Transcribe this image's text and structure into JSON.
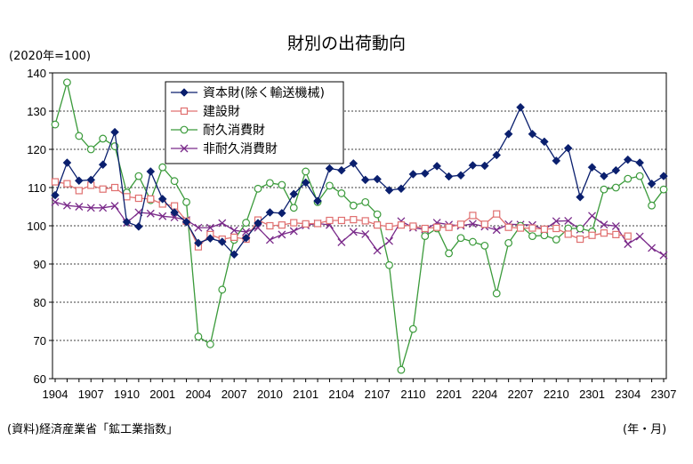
{
  "title": "財別の出荷動向",
  "unit_label": "(2020年=100)",
  "source": "(資料)経済産業省「鉱工業指数」",
  "x_unit": "(年・月)",
  "chart_data": {
    "type": "line",
    "title": "財別の出荷動向",
    "xlabel": "(年・月)",
    "ylabel": "(2020年=100)",
    "ylim": [
      60,
      140
    ],
    "yticks": [
      60,
      70,
      80,
      90,
      100,
      110,
      120,
      130,
      140
    ],
    "grid": true,
    "legend_position": "top-left",
    "x_tick_labels": [
      "1904",
      "1907",
      "1910",
      "2001",
      "2004",
      "2007",
      "2010",
      "2101",
      "2104",
      "2107",
      "2110",
      "2201",
      "2204",
      "2207",
      "2210",
      "2301",
      "2304",
      "2307"
    ],
    "x_start": "2019-04",
    "x_end": "2023-09",
    "series": [
      {
        "name": "資本財(除く輸送機械)",
        "color": "#0a1f6e",
        "marker": "diamond",
        "values": [
          108.0,
          116.5,
          111.8,
          112.0,
          116.0,
          124.5,
          101.0,
          99.8,
          114.2,
          107.0,
          103.5,
          101.0,
          95.5,
          96.7,
          95.8,
          92.5,
          96.8,
          100.7,
          103.5,
          103.3,
          108.3,
          111.3,
          106.5,
          115.0,
          114.5,
          116.3,
          112.0,
          112.2,
          109.3,
          109.7,
          113.5,
          113.7,
          115.6,
          112.9,
          113.2,
          115.8,
          115.7,
          118.5,
          124.0,
          131.0,
          124.0,
          122.0,
          117.0,
          120.3,
          107.5,
          115.3,
          113.0,
          114.5,
          117.3,
          116.5,
          111.0,
          113.0
        ]
      },
      {
        "name": "建設財",
        "color": "#e07070",
        "marker": "square",
        "values": [
          111.5,
          111.0,
          109.2,
          110.6,
          109.6,
          110.0,
          107.6,
          107.2,
          107.0,
          105.7,
          105.2,
          101.2,
          94.5,
          97.7,
          96.5,
          97.0,
          96.5,
          101.5,
          100.0,
          100.2,
          100.8,
          100.5,
          100.6,
          101.4,
          101.4,
          101.6,
          101.3,
          100.2,
          99.8,
          100.2,
          99.9,
          99.3,
          99.6,
          99.6,
          100.4,
          102.7,
          100.4,
          103.1,
          99.6,
          99.4,
          99.4,
          99.1,
          99.3,
          97.8,
          96.5,
          97.5,
          98.1,
          97.7,
          97.3,
          null,
          null,
          null
        ]
      },
      {
        "name": "耐久消費財",
        "color": "#3a9a3a",
        "marker": "circle",
        "values": [
          126.5,
          137.5,
          123.5,
          120.0,
          122.8,
          120.8,
          108.7,
          113.0,
          106.7,
          115.3,
          111.7,
          106.2,
          71.0,
          69.0,
          83.3,
          96.3,
          100.8,
          109.7,
          111.2,
          110.7,
          104.7,
          114.2,
          106.2,
          110.5,
          108.5,
          105.3,
          106.2,
          103.0,
          89.7,
          62.3,
          73.0,
          97.3,
          99.3,
          92.8,
          96.8,
          95.8,
          94.8,
          82.3,
          95.5,
          100.0,
          97.3,
          97.5,
          96.4,
          99.3,
          99.3,
          98.5,
          109.5,
          110.0,
          112.3,
          113.0,
          105.3,
          109.5
        ]
      },
      {
        "name": "非耐久消費財",
        "color": "#7a2a8a",
        "marker": "x",
        "values": [
          106.2,
          105.3,
          105.0,
          104.7,
          104.7,
          105.2,
          100.8,
          103.5,
          103.2,
          102.5,
          102.2,
          101.5,
          99.5,
          99.5,
          100.7,
          98.8,
          98.4,
          99.5,
          96.3,
          97.7,
          98.6,
          100.1,
          100.6,
          100.2,
          95.7,
          98.4,
          97.8,
          93.5,
          96.0,
          101.2,
          99.5,
          99.0,
          100.8,
          100.3,
          100.0,
          100.5,
          99.8,
          98.9,
          100.4,
          100.3,
          100.2,
          99.0,
          101.2,
          101.3,
          99.0,
          102.6,
          100.3,
          99.9,
          95.2,
          97.2,
          94.2,
          92.3
        ]
      }
    ]
  }
}
